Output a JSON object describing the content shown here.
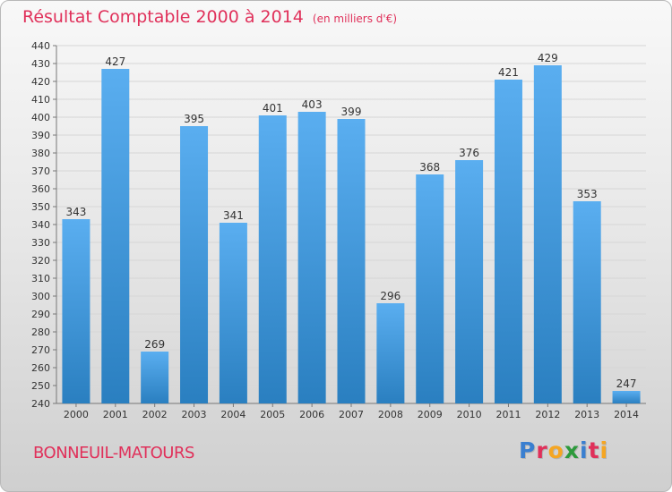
{
  "header": {
    "title": "Résultat Comptable 2000 à 2014",
    "subtitle": "(en milliers d'€)"
  },
  "footer": {
    "commune": "BONNEUIL-MATOURS",
    "brand": "Proxiti",
    "brand_colors": [
      "#3a7fd0",
      "#e0305a",
      "#f5a623",
      "#2d9a3c",
      "#3a7fd0",
      "#e0305a",
      "#f5a623"
    ]
  },
  "colors": {
    "bar_top": "#5aaef0",
    "bar_bottom": "#2a7fc0",
    "grid": "#d6d6d6",
    "title": "#e0305a"
  },
  "chart_data": {
    "type": "bar",
    "title": "Résultat Comptable 2000 à 2014",
    "subtitle": "(en milliers d'€)",
    "categories": [
      "2000",
      "2001",
      "2002",
      "2003",
      "2004",
      "2005",
      "2006",
      "2007",
      "2008",
      "2009",
      "2010",
      "2011",
      "2012",
      "2013",
      "2014"
    ],
    "values": [
      343,
      427,
      269,
      395,
      341,
      401,
      403,
      399,
      296,
      368,
      376,
      421,
      429,
      353,
      247
    ],
    "ylim": [
      240,
      440
    ],
    "yticks": [
      240,
      250,
      260,
      270,
      280,
      290,
      300,
      310,
      320,
      330,
      340,
      350,
      360,
      370,
      380,
      390,
      400,
      410,
      420,
      430,
      440
    ],
    "grid": true
  }
}
